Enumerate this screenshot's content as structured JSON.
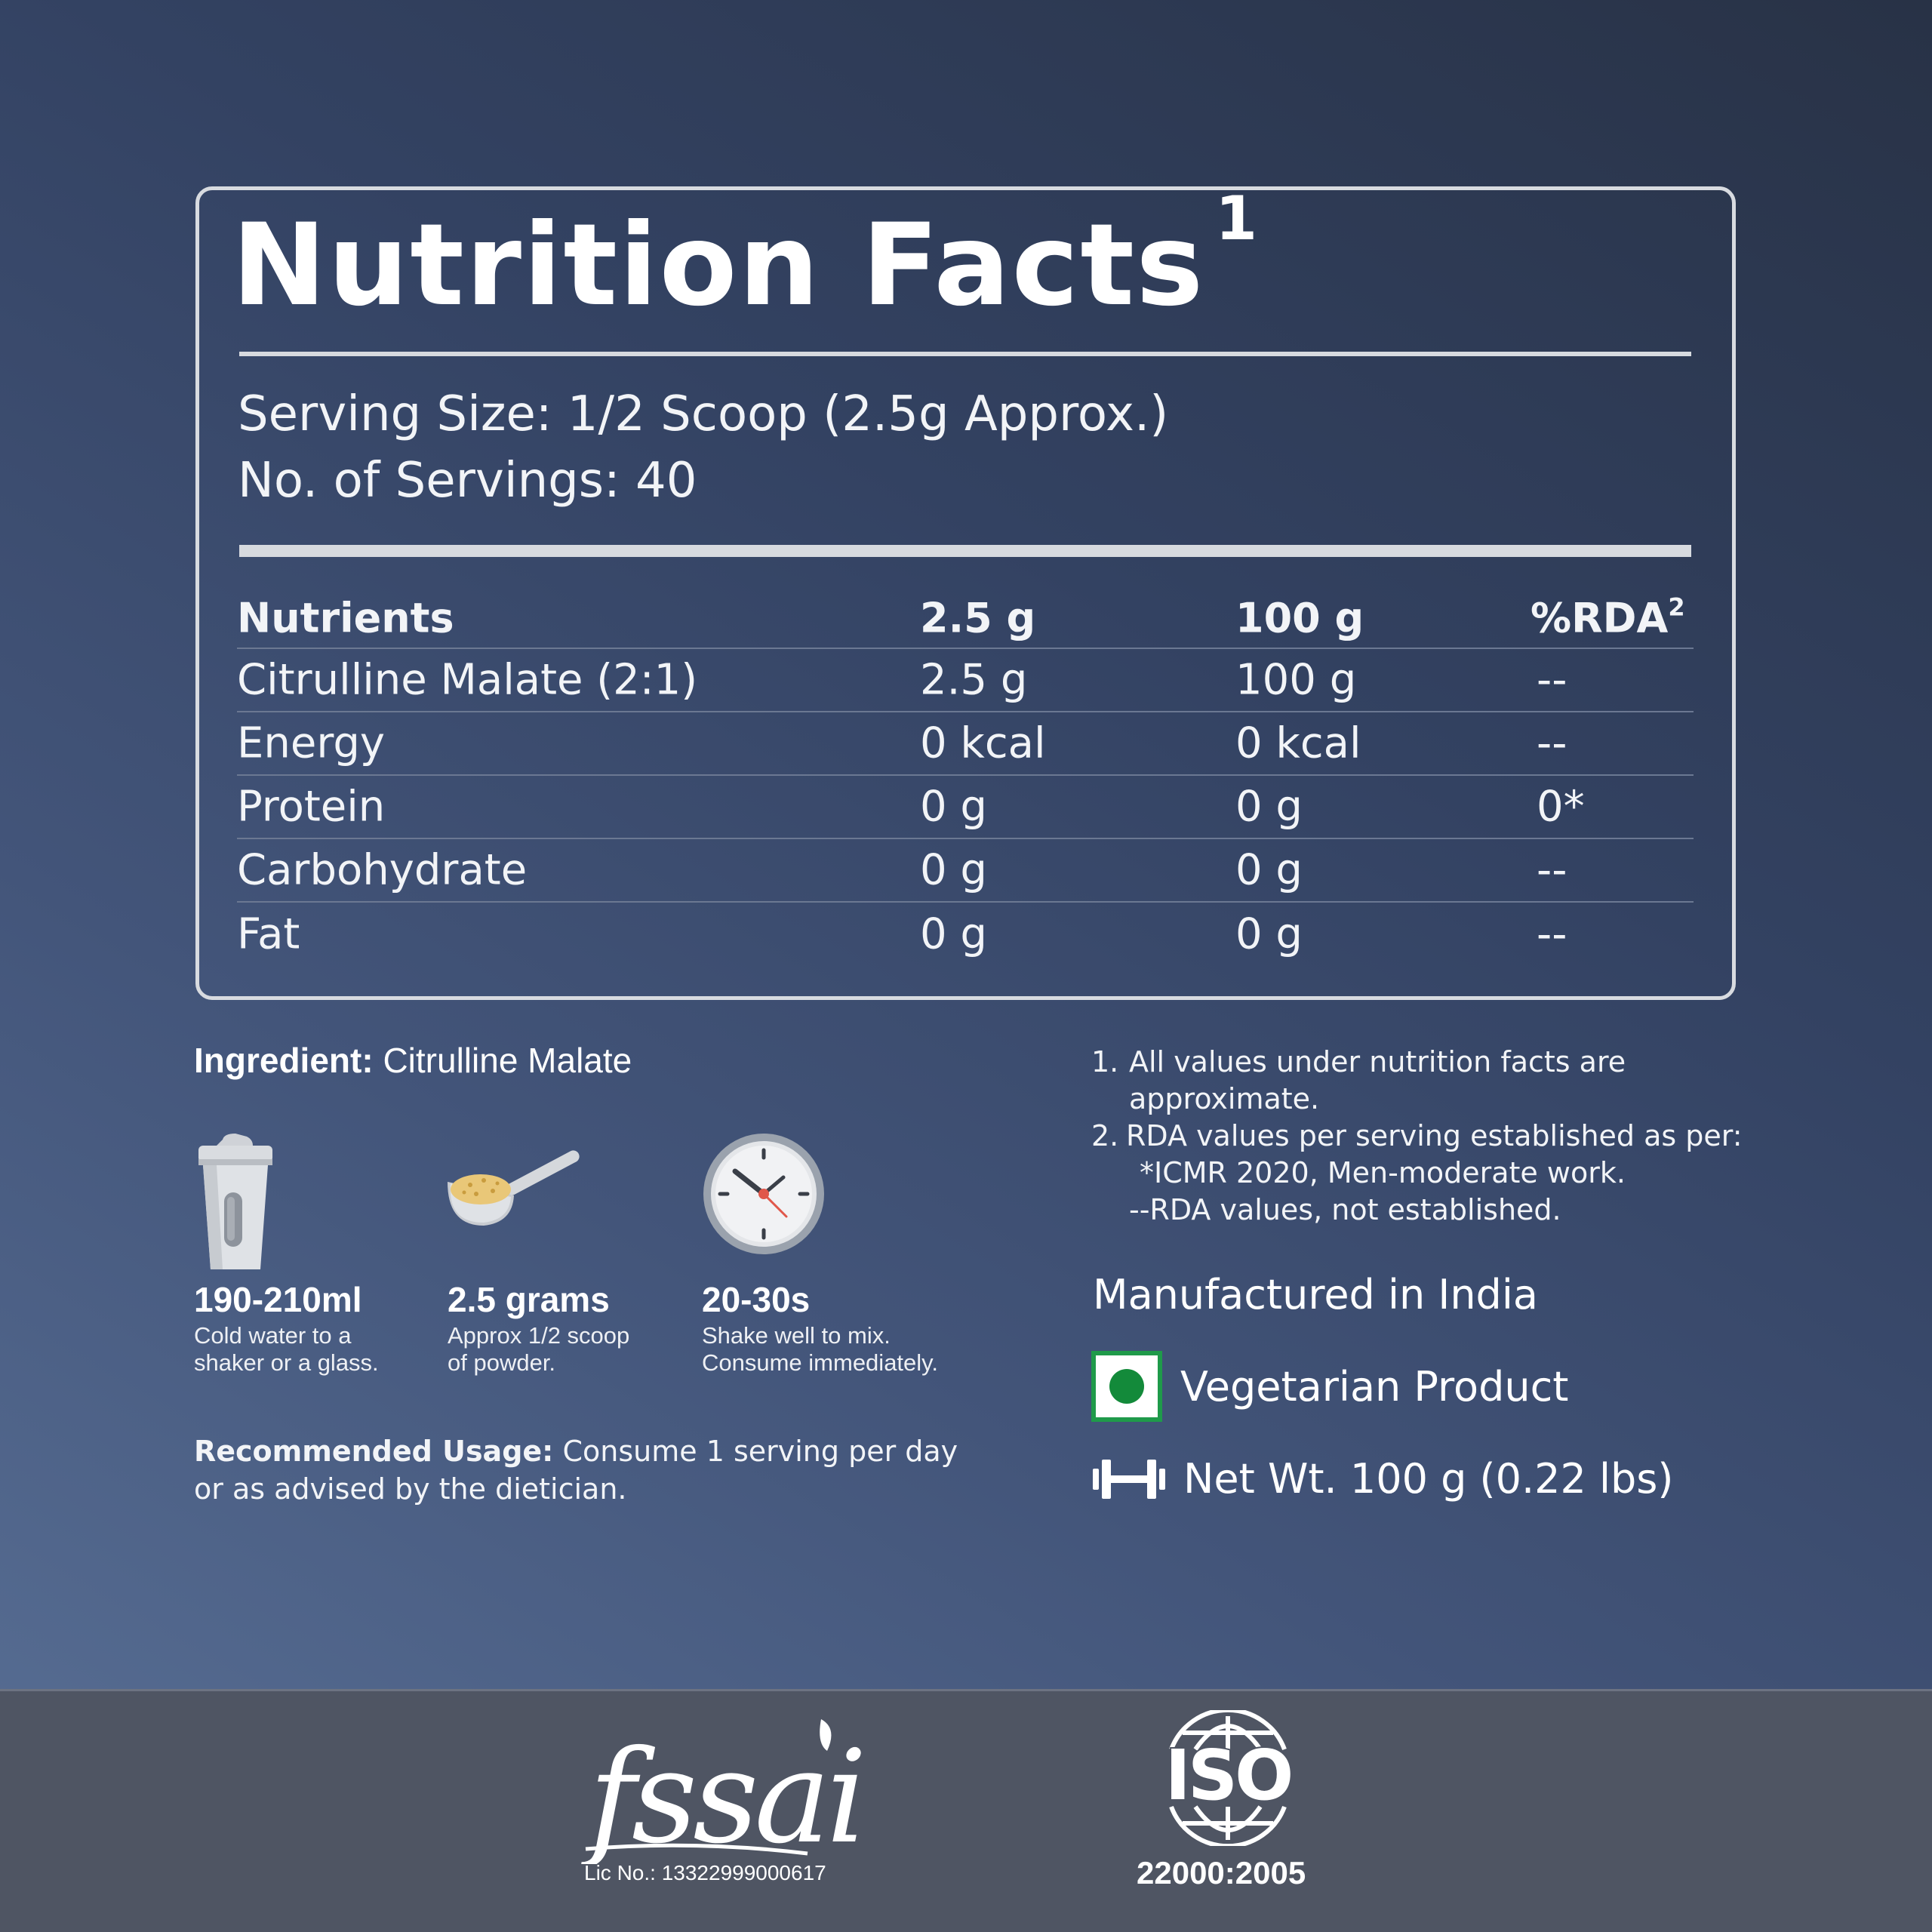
{
  "nutrition": {
    "title": "Nutrition Facts",
    "title_sup": "1",
    "serving_size": "Serving Size: 1/2 Scoop (2.5g Approx.)",
    "servings": "No. of Servings: 40",
    "headers": {
      "nutrients": "Nutrients",
      "per_serving": "2.5 g",
      "per_100": "100 g",
      "rda": "%RDA",
      "rda_sup": "2"
    },
    "rows": [
      {
        "name": "Citrulline Malate (2:1)",
        "serving": "2.5 g",
        "per100": "100 g",
        "rda": "--"
      },
      {
        "name": "Energy",
        "serving": "0 kcal",
        "per100": "0 kcal",
        "rda": "--"
      },
      {
        "name": "Protein",
        "serving": "0 g",
        "per100": "0 g",
        "rda": "0*"
      },
      {
        "name": "Carbohydrate",
        "serving": "0 g",
        "per100": "0 g",
        "rda": "--"
      },
      {
        "name": "Fat",
        "serving": "0 g",
        "per100": "0 g",
        "rda": "--"
      }
    ]
  },
  "ingredient": {
    "label": "Ingredient:",
    "value": "Citrulline Malate"
  },
  "steps": [
    {
      "icon": "shaker-icon",
      "big": "190-210ml",
      "line1": "Cold water to a",
      "line2": "shaker or a glass."
    },
    {
      "icon": "scoop-icon",
      "big": "2.5 grams",
      "line1": "Approx 1/2 scoop",
      "line2": "of powder."
    },
    {
      "icon": "clock-icon",
      "big": "20-30s",
      "line1": "Shake well to mix.",
      "line2": "Consume immediately."
    }
  ],
  "usage": {
    "label": "Recommended Usage:",
    "line1": "Consume 1 serving per day",
    "line2": "or as advised by the dietician."
  },
  "notes": {
    "n1_num": "1.",
    "n1_line1": "All values under nutrition facts are",
    "n1_line2": "approximate.",
    "n2_num": "2.",
    "n2_line1": "RDA values per serving established as per:",
    "n2_line2": "*ICMR 2020, Men-moderate work.",
    "n2_line3": "--RDA values, not established."
  },
  "manufactured": "Manufactured in India",
  "veg": {
    "icon": "vegetarian-mark-icon",
    "label": "Vegetarian Product"
  },
  "net_wt": {
    "icon": "dumbbell-icon",
    "label": "Net Wt. 100 g (0.22 lbs)"
  },
  "footer": {
    "fssai": {
      "icon": "fssai-logo",
      "text": "fssai",
      "lic": "Lic No.:  13322999000617"
    },
    "iso": {
      "icon": "iso-logo",
      "text": "ISO",
      "code": "22000:2005"
    }
  },
  "colors": {
    "veg_green": "#138a3a",
    "panel_border": "#d8dbe0",
    "footer_bg": "#4f5563"
  }
}
